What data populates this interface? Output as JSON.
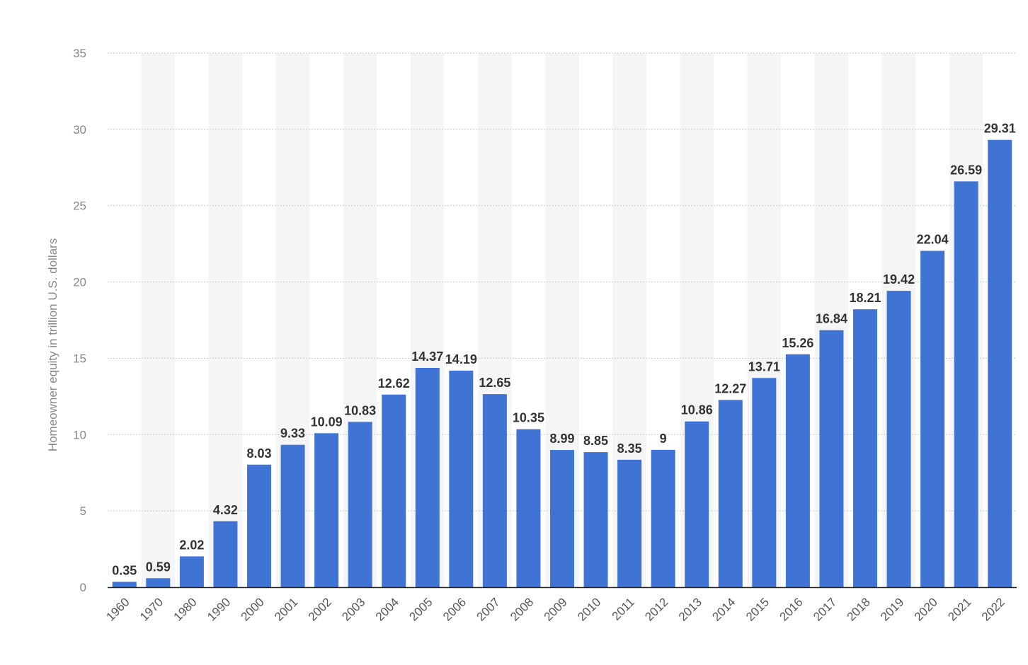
{
  "chart_data": {
    "type": "bar",
    "title": "",
    "xlabel": "",
    "ylabel": "Homeowner equity in trillion U.S. dollars",
    "categories": [
      "1960",
      "1970",
      "1980",
      "1990",
      "2000",
      "2001",
      "2002",
      "2003",
      "2004",
      "2005",
      "2006",
      "2007",
      "2008",
      "2009",
      "2010",
      "2011",
      "2012",
      "2013",
      "2014",
      "2015",
      "2016",
      "2017",
      "2018",
      "2019",
      "2020",
      "2021",
      "2022"
    ],
    "values": [
      0.35,
      0.59,
      2.02,
      4.32,
      8.03,
      9.33,
      10.09,
      10.83,
      12.62,
      14.37,
      14.19,
      12.65,
      10.35,
      8.99,
      8.85,
      8.35,
      9,
      10.86,
      12.27,
      13.71,
      15.26,
      16.84,
      18.21,
      19.42,
      22.04,
      26.59,
      29.31
    ],
    "value_labels": [
      "0.35",
      "0.59",
      "2.02",
      "4.32",
      "8.03",
      "9.33",
      "10.09",
      "10.83",
      "12.62",
      "14.37",
      "14.19",
      "12.65",
      "10.35",
      "8.99",
      "8.85",
      "8.35",
      "9",
      "10.86",
      "12.27",
      "13.71",
      "15.26",
      "16.84",
      "18.21",
      "19.42",
      "22.04",
      "26.59",
      "29.31"
    ],
    "ylim": [
      0,
      35
    ],
    "yticks": [
      "0",
      "5",
      "10",
      "15",
      "20",
      "25",
      "30",
      "35"
    ],
    "grid": true,
    "legend": "none",
    "colors": {
      "bar": "#3f74d4",
      "band": "#f5f5f5",
      "grid": "#c8c8c8",
      "axis": "#222222"
    }
  }
}
